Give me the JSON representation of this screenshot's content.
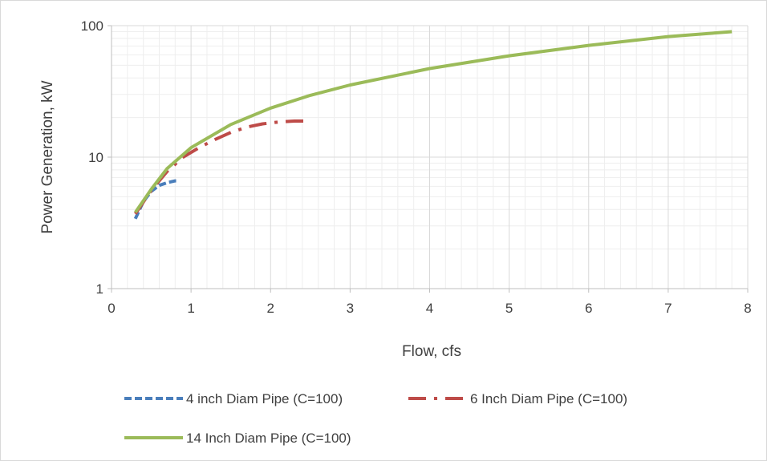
{
  "chart_data": {
    "type": "line",
    "title": "",
    "xlabel": "Flow, cfs",
    "ylabel": "Power Generation, kW",
    "xlim": [
      0,
      8
    ],
    "ylim": [
      1,
      100
    ],
    "y_scale": "log",
    "grid": true,
    "legend_position": "bottom",
    "x_ticks": [
      "0",
      "1",
      "2",
      "3",
      "4",
      "5",
      "6",
      "7",
      "8"
    ],
    "y_ticks": [
      "1",
      "10",
      "100"
    ],
    "series": [
      {
        "name": "4 inch Diam Pipe (C=100)",
        "color": "#4a7ebb",
        "dash": "dashed",
        "x": [
          0.3,
          0.4,
          0.5,
          0.6,
          0.7,
          0.8,
          0.85
        ],
        "y": [
          3.4,
          4.6,
          5.5,
          6.1,
          6.4,
          6.6,
          6.6
        ]
      },
      {
        "name": "6 Inch Diam Pipe (C=100)",
        "color": "#be4b48",
        "dash": "dash-dot",
        "x": [
          0.3,
          0.5,
          0.7,
          0.9,
          1.1,
          1.3,
          1.5,
          1.7,
          1.9,
          2.1,
          2.3,
          2.45
        ],
        "y": [
          3.7,
          5.6,
          7.8,
          10.0,
          11.8,
          13.6,
          15.4,
          16.9,
          17.9,
          18.5,
          18.8,
          18.8
        ]
      },
      {
        "name": "14 Inch Diam Pipe (C=100)",
        "color": "#9bbb59",
        "dash": "solid",
        "x": [
          0.3,
          0.5,
          0.7,
          1.0,
          1.5,
          2.0,
          2.5,
          3.0,
          4.0,
          5.0,
          6.0,
          7.0,
          7.8
        ],
        "y": [
          3.8,
          5.7,
          8.2,
          11.8,
          17.7,
          23.6,
          29.5,
          35.4,
          47.2,
          59.0,
          70.8,
          82.6,
          90.0
        ]
      }
    ]
  }
}
